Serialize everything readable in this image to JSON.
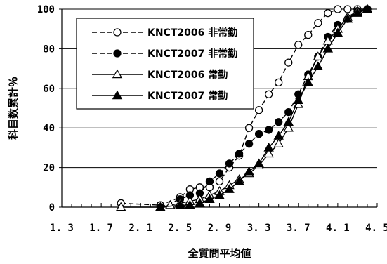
{
  "chart_data": {
    "type": "line",
    "title": "",
    "xlabel": "全質問平均値",
    "ylabel": "科目数累計％",
    "xlim": [
      1.3,
      4.5
    ],
    "ylim": [
      0,
      100
    ],
    "xticks": [
      "1.3",
      "1.7",
      "2.1",
      "2.5",
      "2.9",
      "3.3",
      "3.7",
      "4.1",
      "4.5"
    ],
    "yticks": [
      "0",
      "20",
      "40",
      "60",
      "80",
      "100"
    ],
    "grid": "horizontal",
    "legend_position": "top-left",
    "series": [
      {
        "name": "KNCT2006 非常勤",
        "line": "dashed",
        "marker": "open-circle",
        "x": [
          1.9,
          2.3,
          2.5,
          2.6,
          2.7,
          2.8,
          2.9,
          3.0,
          3.1,
          3.2,
          3.3,
          3.4,
          3.5,
          3.6,
          3.7,
          3.8,
          3.9,
          4.0,
          4.1,
          4.2,
          4.3,
          4.4
        ],
        "y": [
          2,
          1,
          5,
          9,
          10,
          10,
          13,
          20,
          26,
          40,
          49,
          57,
          63,
          73,
          82,
          87,
          93,
          98,
          100,
          100,
          100,
          100
        ]
      },
      {
        "name": "KNCT2007 非常勤",
        "line": "dashed",
        "marker": "filled-circle",
        "x": [
          2.3,
          2.5,
          2.6,
          2.7,
          2.8,
          2.9,
          3.0,
          3.1,
          3.2,
          3.3,
          3.4,
          3.5,
          3.6,
          3.7,
          3.8,
          3.9,
          4.0,
          4.1,
          4.2,
          4.3,
          4.4
        ],
        "y": [
          0,
          4,
          6,
          7,
          13,
          17,
          22,
          27,
          32,
          37,
          39,
          43,
          48,
          57,
          67,
          76,
          86,
          92,
          95,
          99,
          100
        ]
      },
      {
        "name": "KNCT2006 常勤",
        "line": "solid",
        "marker": "open-triangle",
        "x": [
          1.9,
          2.3,
          2.4,
          2.5,
          2.6,
          2.7,
          2.8,
          2.9,
          3.0,
          3.1,
          3.2,
          3.3,
          3.4,
          3.5,
          3.6,
          3.7,
          3.8,
          3.9,
          4.0,
          4.1,
          4.2,
          4.3,
          4.4
        ],
        "y": [
          0,
          0,
          1,
          2,
          3,
          4,
          6,
          8,
          11,
          14,
          17,
          21,
          27,
          32,
          40,
          52,
          66,
          76,
          84,
          90,
          96,
          99,
          100
        ]
      },
      {
        "name": "KNCT2007 常勤",
        "line": "solid",
        "marker": "filled-triangle",
        "x": [
          2.3,
          2.5,
          2.6,
          2.7,
          2.8,
          2.9,
          3.0,
          3.1,
          3.2,
          3.3,
          3.4,
          3.5,
          3.6,
          3.7,
          3.8,
          3.9,
          4.0,
          4.1,
          4.2,
          4.3,
          4.4
        ],
        "y": [
          0,
          1,
          1,
          2,
          4,
          6,
          9,
          13,
          18,
          22,
          30,
          36,
          43,
          54,
          63,
          71,
          80,
          88,
          95,
          98,
          100
        ]
      }
    ]
  }
}
